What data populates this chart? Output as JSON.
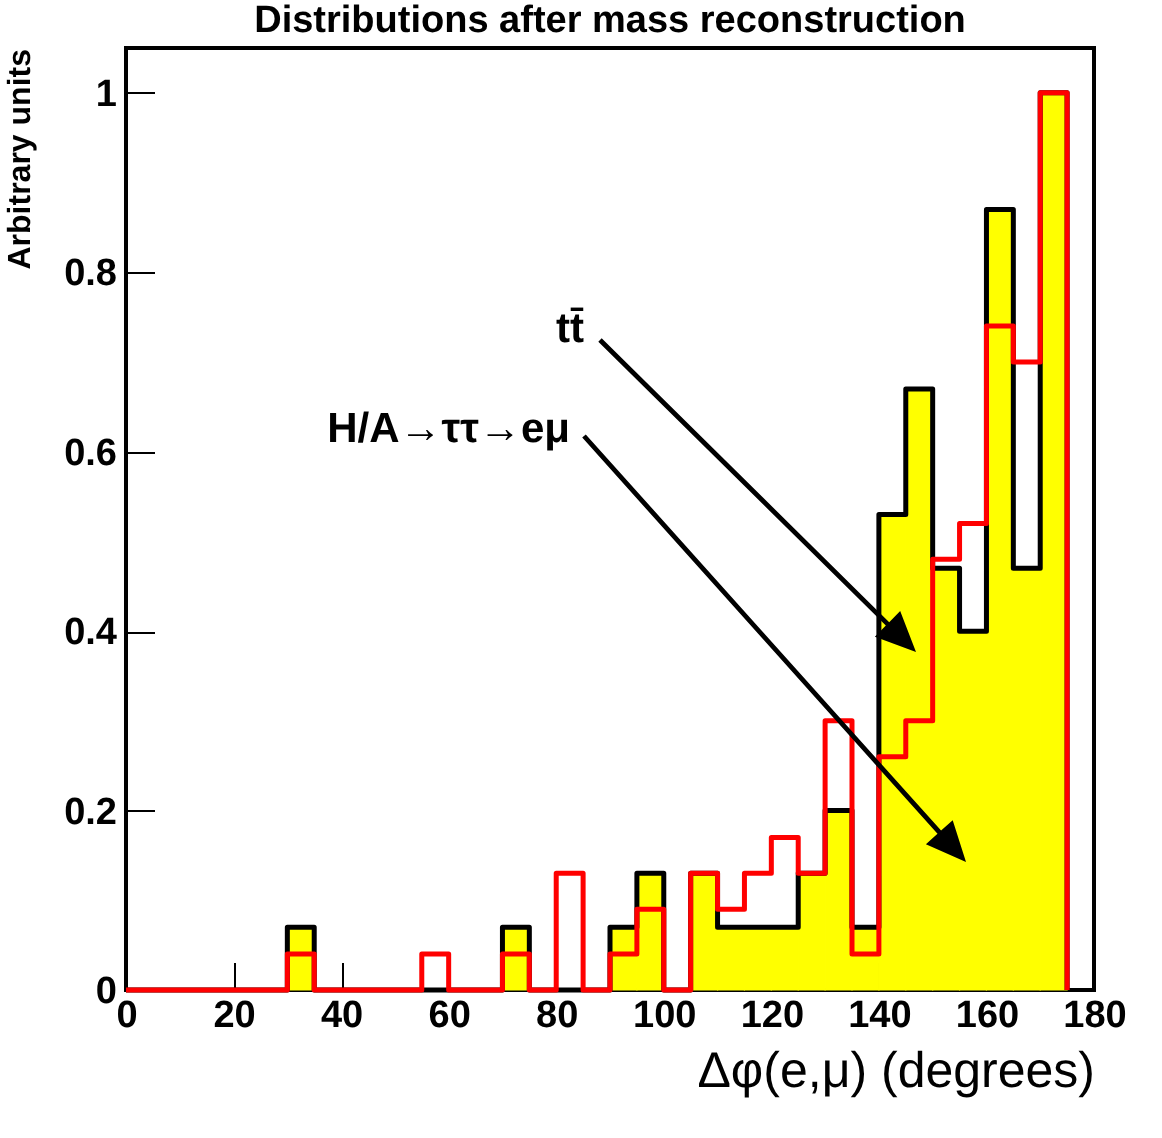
{
  "chart_data": {
    "type": "histogram",
    "title": "Distributions after mass reconstruction",
    "xlabel": "Δφ(e,μ) (degrees)",
    "ylabel": "Arbitrary units",
    "bins": [
      0,
      5,
      10,
      15,
      20,
      25,
      30,
      35,
      40,
      45,
      50,
      55,
      60,
      65,
      70,
      75,
      80,
      85,
      90,
      95,
      100,
      105,
      110,
      115,
      120,
      125,
      130,
      135,
      140,
      145,
      150,
      155,
      160,
      165,
      170,
      175
    ],
    "xlim": [
      0,
      180
    ],
    "xticks": [
      0,
      20,
      40,
      60,
      80,
      100,
      120,
      140,
      160,
      180
    ],
    "ylim": [
      0,
      1.05
    ],
    "yticks": [
      0,
      0.2,
      0.4,
      0.6,
      0.8,
      1
    ],
    "series": [
      {
        "color": "#ffff00",
        "values": [
          0,
          0,
          0,
          0,
          0,
          0,
          0.07,
          0,
          0,
          0,
          0,
          0,
          0,
          0,
          0.07,
          0,
          0,
          0,
          0.07,
          0.13,
          0,
          0.13,
          0.07,
          0.07,
          0.07,
          0.13,
          0.2,
          0.07,
          0.53,
          0.67,
          0.47,
          0.4,
          0.87,
          0.47,
          1
        ]
      },
      {
        "color": "#ff0000",
        "values": [
          0,
          0,
          0,
          0,
          0,
          0,
          0.04,
          0,
          0,
          0,
          0,
          0.04,
          0,
          0,
          0.04,
          0,
          0.13,
          0,
          0.04,
          0.09,
          0,
          0.13,
          0.09,
          0.13,
          0.17,
          0.13,
          0.3,
          0.04,
          0.26,
          0.3,
          0.48,
          0.52,
          0.74,
          0.7,
          1
        ]
      }
    ],
    "annotations": [
      "tt̄",
      "H/A→ττ→eμ"
    ]
  }
}
